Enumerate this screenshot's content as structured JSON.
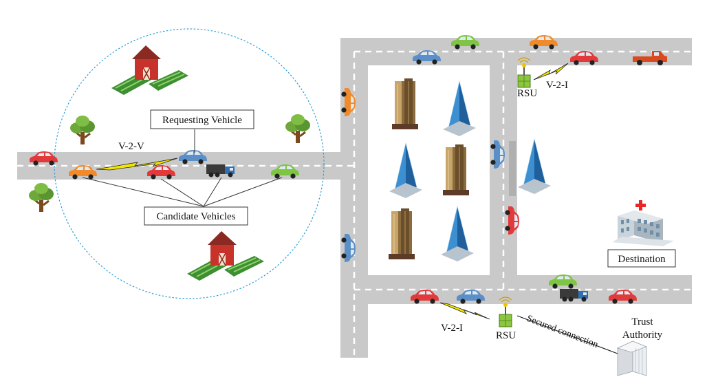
{
  "labels": {
    "requesting_vehicle": "Requesting Vehicle",
    "candidate_vehicles": "Candidate Vehicles",
    "destination": "Destination",
    "v2v": "V-2-V",
    "v2i_top": "V-2-I",
    "v2i_bottom": "V-2-I",
    "rsu_top": "RSU",
    "rsu_bottom": "RSU",
    "secured_connection": "Secured connection",
    "trust_authority_line1": "Trust",
    "trust_authority_line2": "Authority"
  },
  "colors": {
    "road": "#c9c9c9",
    "lane_marking": "#ffffff",
    "range_circle": "#2e9fd6",
    "signal": "#f2e600",
    "rsu": "#8cc63f",
    "hospital_cross": "#e8262a"
  },
  "icons": {
    "vehicle": "car-icon",
    "truck": "truck-icon",
    "rsu": "rsu-antenna-icon",
    "building": "skyscraper-icon",
    "farm": "barn-farm-icon",
    "tree": "tree-icon",
    "hospital": "hospital-icon",
    "server": "server-icon",
    "wireless": "lightning-signal-icon"
  }
}
